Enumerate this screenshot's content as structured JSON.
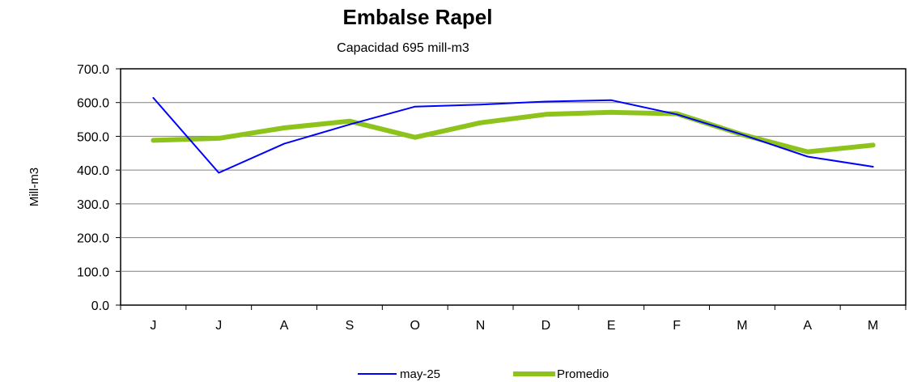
{
  "chart_data": {
    "type": "line",
    "title": "Embalse Rapel",
    "subtitle": "Capacidad 695 mill-m3",
    "xlabel": "",
    "ylabel": "Mill-m3",
    "categories": [
      "J",
      "J",
      "A",
      "S",
      "O",
      "N",
      "D",
      "E",
      "F",
      "M",
      "A",
      "M"
    ],
    "ylim": [
      0,
      700
    ],
    "ytick_values": [
      0,
      100,
      200,
      300,
      400,
      500,
      600,
      700
    ],
    "ytick_labels": [
      "0.0",
      "100.0",
      "200.0",
      "300.0",
      "400.0",
      "500.0",
      "600.0",
      "700.0"
    ],
    "grid": true,
    "legend_position": "bottom",
    "series": [
      {
        "name": "may-25",
        "color": "#0000ff",
        "values": [
          614,
          392,
          478,
          535,
          588,
          594,
          603,
          607,
          565,
          505,
          440,
          410
        ]
      },
      {
        "name": "Promedio",
        "color": "#8ec31c",
        "values": [
          488,
          494,
          525,
          545,
          497,
          540,
          565,
          571,
          567,
          505,
          454,
          474
        ]
      }
    ]
  }
}
